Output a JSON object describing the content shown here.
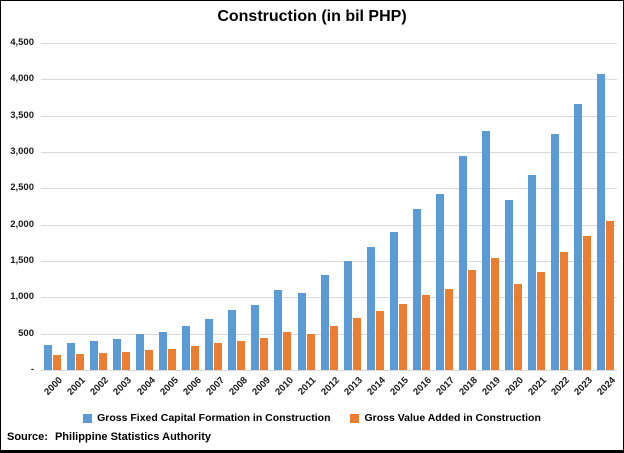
{
  "source_prefix": "Source:",
  "source_text": "Philippine Statistics Authority",
  "colors": {
    "series1": "#5B9BD5",
    "series2": "#ED7D31",
    "gridline": "#D9D9D9",
    "text": "#000000"
  },
  "chart_data": {
    "type": "bar",
    "title": "Construction (in bil PHP)",
    "categories": [
      "2000",
      "2001",
      "2002",
      "2003",
      "2004",
      "2005",
      "2006",
      "2007",
      "2008",
      "2009",
      "2010",
      "2011",
      "2012",
      "2013",
      "2014",
      "2015",
      "2016",
      "2017",
      "2018",
      "2019",
      "2020",
      "2021",
      "2022",
      "2023",
      "2024"
    ],
    "series": [
      {
        "name": "Gross Fixed Capital Formation in Construction",
        "color": "#5B9BD5",
        "values": [
          350,
          365,
          395,
          425,
          490,
          520,
          600,
          700,
          825,
          900,
          1095,
          1065,
          1305,
          1495,
          1690,
          1900,
          2215,
          2420,
          2950,
          3295,
          2340,
          2690,
          3245,
          3655,
          4070
        ]
      },
      {
        "name": "Gross Value Added in Construction",
        "color": "#ED7D31",
        "values": [
          205,
          215,
          230,
          250,
          280,
          290,
          330,
          365,
          405,
          440,
          525,
          495,
          600,
          715,
          815,
          905,
          1030,
          1115,
          1375,
          1540,
          1185,
          1355,
          1620,
          1845,
          2050
        ]
      }
    ],
    "xlabel": "",
    "ylabel": "",
    "ylim": [
      0,
      4500
    ],
    "y_tick_values": [
      0,
      500,
      1000,
      1500,
      2000,
      2500,
      3000,
      3500,
      4000,
      4500
    ],
    "y_tick_labels": [
      "-",
      "500",
      "1,000",
      "1,500",
      "2,000",
      "2,500",
      "3,000",
      "3,500",
      "4,000",
      "4,500"
    ],
    "grid": true,
    "legend_position": "bottom"
  }
}
